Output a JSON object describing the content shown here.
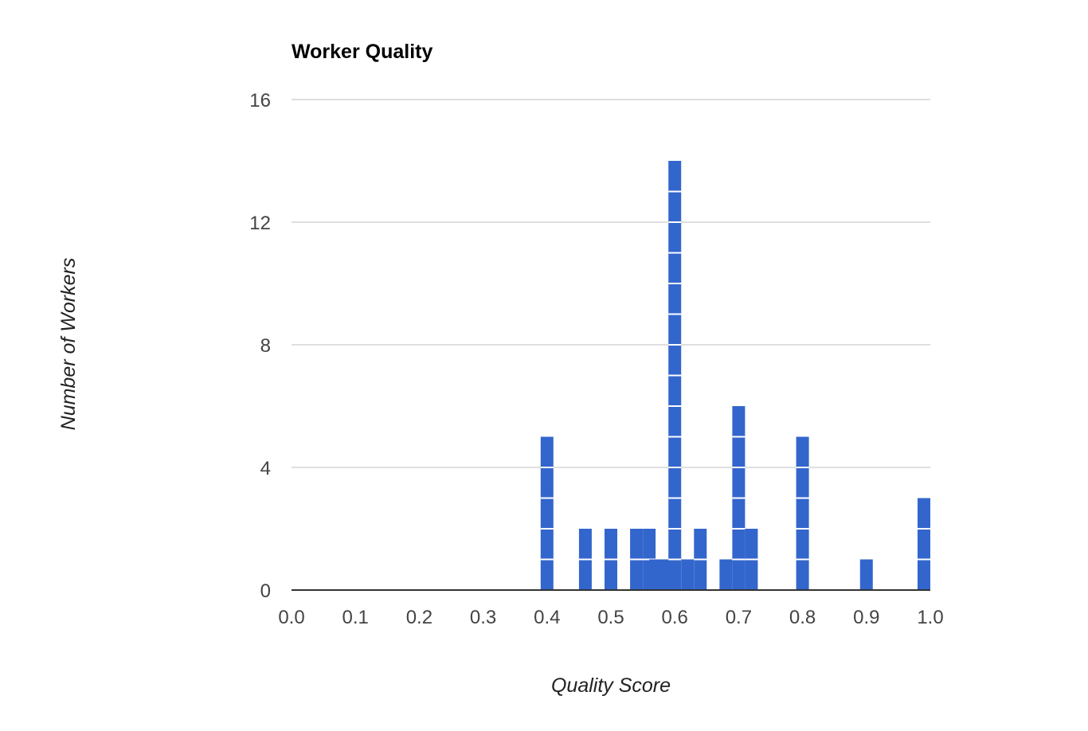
{
  "chart_data": {
    "type": "bar",
    "chart_style": "histogram of stacked unit blocks",
    "title": "Worker Quality",
    "xlabel": "Quality Score",
    "ylabel": "Number of Workers",
    "xlim": [
      0.0,
      1.0
    ],
    "ylim": [
      0,
      16
    ],
    "x_ticks": [
      "0.0",
      "0.1",
      "0.2",
      "0.3",
      "0.4",
      "0.5",
      "0.6",
      "0.7",
      "0.8",
      "0.9",
      "1.0"
    ],
    "y_ticks": [
      "0",
      "4",
      "8",
      "12",
      "16"
    ],
    "grid": true,
    "legend": "none",
    "bar_color": "#3366cc",
    "separator_color": "#ffffff",
    "bars": [
      {
        "x": 0.4,
        "value": 5
      },
      {
        "x": 0.46,
        "value": 2
      },
      {
        "x": 0.5,
        "value": 2
      },
      {
        "x": 0.54,
        "value": 2
      },
      {
        "x": 0.56,
        "value": 2
      },
      {
        "x": 0.57,
        "value": 1
      },
      {
        "x": 0.585,
        "value": 1
      },
      {
        "x": 0.6,
        "value": 14
      },
      {
        "x": 0.62,
        "value": 1
      },
      {
        "x": 0.64,
        "value": 2
      },
      {
        "x": 0.68,
        "value": 1
      },
      {
        "x": 0.7,
        "value": 6
      },
      {
        "x": 0.72,
        "value": 2
      },
      {
        "x": 0.8,
        "value": 5
      },
      {
        "x": 0.9,
        "value": 1
      },
      {
        "x": 1.0,
        "value": 3
      }
    ]
  }
}
